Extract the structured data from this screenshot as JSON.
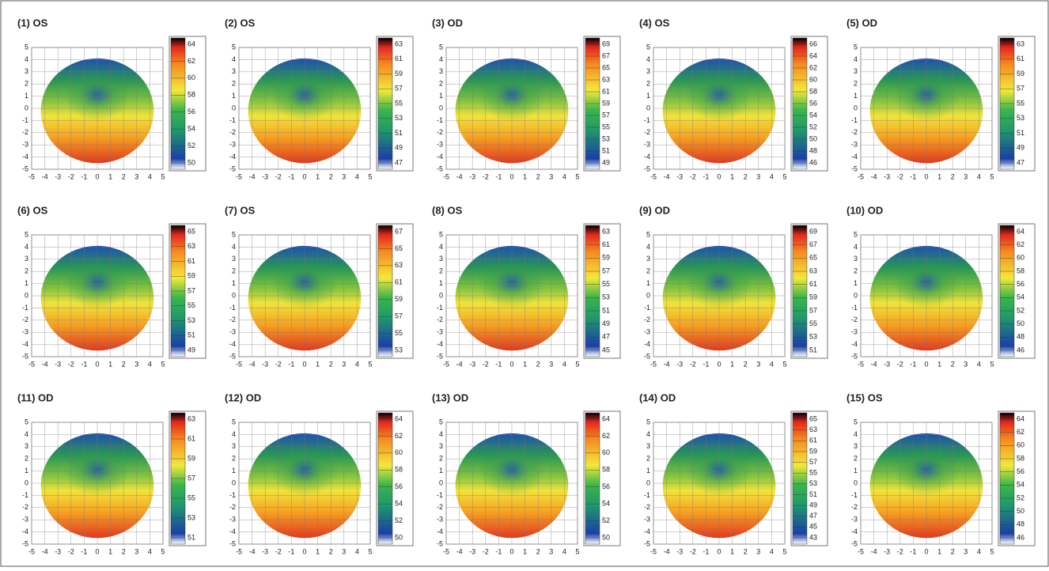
{
  "chart_data": [
    {
      "type": "topography",
      "title": "(1) OS",
      "xlim": [
        -5,
        5
      ],
      "ylim": [
        -5,
        5
      ],
      "xticks": [
        -5,
        -4,
        -3,
        -2,
        -1,
        0,
        1,
        2,
        3,
        4,
        5
      ],
      "yticks": [
        -5,
        -4,
        -3,
        -2,
        -1,
        0,
        1,
        2,
        3,
        4,
        5
      ],
      "colorbar_ticks": [
        64,
        62,
        60,
        58,
        56,
        54,
        52,
        50
      ],
      "grid": true
    },
    {
      "type": "topography",
      "title": "(2) OS",
      "xlim": [
        -5,
        5
      ],
      "ylim": [
        -5,
        5
      ],
      "xticks": [
        -5,
        -4,
        -3,
        -2,
        -1,
        0,
        1,
        2,
        3,
        4,
        5
      ],
      "yticks": [
        -5,
        -4,
        -3,
        -2,
        -1,
        0,
        1,
        2,
        3,
        4,
        5
      ],
      "colorbar_ticks": [
        63,
        61,
        59,
        57,
        55,
        53,
        51,
        49,
        47
      ],
      "grid": true
    },
    {
      "type": "topography",
      "title": "(3) OD",
      "xlim": [
        -5,
        5
      ],
      "ylim": [
        -5,
        5
      ],
      "xticks": [
        -5,
        -4,
        -3,
        -2,
        -1,
        0,
        1,
        2,
        3,
        4,
        5
      ],
      "yticks": [
        -5,
        -4,
        -3,
        -2,
        -1,
        0,
        1,
        2,
        3,
        4,
        5
      ],
      "colorbar_ticks": [
        69,
        67,
        65,
        63,
        61,
        59,
        57,
        55,
        53,
        51,
        49
      ],
      "grid": true
    },
    {
      "type": "topography",
      "title": "(4) OS",
      "xlim": [
        -5,
        5
      ],
      "ylim": [
        -5,
        5
      ],
      "xticks": [
        -5,
        -4,
        -3,
        -2,
        -1,
        0,
        1,
        2,
        3,
        4,
        5
      ],
      "yticks": [
        -5,
        -4,
        -3,
        -2,
        -1,
        0,
        1,
        2,
        3,
        4,
        5
      ],
      "colorbar_ticks": [
        66,
        64,
        62,
        60,
        58,
        56,
        54,
        52,
        50,
        48,
        46
      ],
      "grid": true
    },
    {
      "type": "topography",
      "title": "(5) OD",
      "xlim": [
        -5,
        5
      ],
      "ylim": [
        -5,
        5
      ],
      "xticks": [
        -5,
        -4,
        -3,
        -2,
        -1,
        0,
        1,
        2,
        3,
        4,
        5
      ],
      "yticks": [
        -5,
        -4,
        -3,
        -2,
        -1,
        0,
        1,
        2,
        3,
        4,
        5
      ],
      "colorbar_ticks": [
        63,
        61,
        59,
        57,
        55,
        53,
        51,
        49,
        47
      ],
      "grid": true
    },
    {
      "type": "topography",
      "title": "(6) OS",
      "xlim": [
        -5,
        5
      ],
      "ylim": [
        -5,
        5
      ],
      "xticks": [
        -5,
        -4,
        -3,
        -2,
        -1,
        0,
        1,
        2,
        3,
        4,
        5
      ],
      "yticks": [
        -5,
        -4,
        -3,
        -2,
        -1,
        0,
        1,
        2,
        3,
        4,
        5
      ],
      "colorbar_ticks": [
        65,
        63,
        61,
        59,
        57,
        55,
        53,
        51,
        49
      ],
      "grid": true
    },
    {
      "type": "topography",
      "title": "(7) OS",
      "xlim": [
        -5,
        5
      ],
      "ylim": [
        -5,
        5
      ],
      "xticks": [
        -5,
        -4,
        -3,
        -2,
        -1,
        0,
        1,
        2,
        3,
        4,
        5
      ],
      "yticks": [
        -5,
        -4,
        -3,
        -2,
        -1,
        0,
        1,
        2,
        3,
        4,
        5
      ],
      "colorbar_ticks": [
        67,
        65,
        63,
        61,
        59,
        57,
        55,
        53
      ],
      "grid": true
    },
    {
      "type": "topography",
      "title": "(8) OS",
      "xlim": [
        -5,
        5
      ],
      "ylim": [
        -5,
        5
      ],
      "xticks": [
        -5,
        -4,
        -3,
        -2,
        -1,
        0,
        1,
        2,
        3,
        4,
        5
      ],
      "yticks": [
        -5,
        -4,
        -3,
        -2,
        -1,
        0,
        1,
        2,
        3,
        4,
        5
      ],
      "colorbar_ticks": [
        63,
        61,
        59,
        57,
        55,
        53,
        51,
        49,
        47,
        45
      ],
      "grid": true
    },
    {
      "type": "topography",
      "title": "(9) OD",
      "xlim": [
        -5,
        5
      ],
      "ylim": [
        -5,
        5
      ],
      "xticks": [
        -5,
        -4,
        -3,
        -2,
        -1,
        0,
        1,
        2,
        3,
        4,
        5
      ],
      "yticks": [
        -5,
        -4,
        -3,
        -2,
        -1,
        0,
        1,
        2,
        3,
        4,
        5
      ],
      "colorbar_ticks": [
        69,
        67,
        65,
        63,
        61,
        59,
        57,
        55,
        53,
        51
      ],
      "grid": true
    },
    {
      "type": "topography",
      "title": "(10) OD",
      "xlim": [
        -5,
        5
      ],
      "ylim": [
        -5,
        5
      ],
      "xticks": [
        -5,
        -4,
        -3,
        -2,
        -1,
        0,
        1,
        2,
        3,
        4,
        5
      ],
      "yticks": [
        -5,
        -4,
        -3,
        -2,
        -1,
        0,
        1,
        2,
        3,
        4,
        5
      ],
      "colorbar_ticks": [
        64,
        62,
        60,
        58,
        56,
        54,
        52,
        50,
        48,
        46
      ],
      "grid": true
    },
    {
      "type": "topography",
      "title": "(11) OD",
      "xlim": [
        -5,
        5
      ],
      "ylim": [
        -5,
        5
      ],
      "xticks": [
        -5,
        -4,
        -3,
        -2,
        -1,
        0,
        1,
        2,
        3,
        4,
        5
      ],
      "yticks": [
        -5,
        -4,
        -3,
        -2,
        -1,
        0,
        1,
        2,
        3,
        4,
        5
      ],
      "colorbar_ticks": [
        63,
        61,
        59,
        57,
        55,
        53,
        51
      ],
      "grid": true
    },
    {
      "type": "topography",
      "title": "(12) OD",
      "xlim": [
        -5,
        5
      ],
      "ylim": [
        -5,
        5
      ],
      "xticks": [
        -5,
        -4,
        -3,
        -2,
        -1,
        0,
        1,
        2,
        3,
        4,
        5
      ],
      "yticks": [
        -5,
        -4,
        -3,
        -2,
        -1,
        0,
        1,
        2,
        3,
        4,
        5
      ],
      "colorbar_ticks": [
        64,
        62,
        60,
        58,
        56,
        54,
        52,
        50
      ],
      "grid": true
    },
    {
      "type": "topography",
      "title": "(13) OD",
      "xlim": [
        -5,
        5
      ],
      "ylim": [
        -5,
        5
      ],
      "xticks": [
        -5,
        -4,
        -3,
        -2,
        -1,
        0,
        1,
        2,
        3,
        4,
        5
      ],
      "yticks": [
        -5,
        -4,
        -3,
        -2,
        -1,
        0,
        1,
        2,
        3,
        4,
        5
      ],
      "colorbar_ticks": [
        64,
        62,
        60,
        58,
        56,
        54,
        52,
        50
      ],
      "grid": true
    },
    {
      "type": "topography",
      "title": "(14) OD",
      "xlim": [
        -5,
        5
      ],
      "ylim": [
        -5,
        5
      ],
      "xticks": [
        -5,
        -4,
        -3,
        -2,
        -1,
        0,
        1,
        2,
        3,
        4,
        5
      ],
      "yticks": [
        -5,
        -4,
        -3,
        -2,
        -1,
        0,
        1,
        2,
        3,
        4,
        5
      ],
      "colorbar_ticks": [
        65,
        63,
        61,
        59,
        57,
        55,
        53,
        51,
        49,
        47,
        45,
        43
      ],
      "grid": true
    },
    {
      "type": "topography",
      "title": "(15) OS",
      "xlim": [
        -5,
        5
      ],
      "ylim": [
        -5,
        5
      ],
      "xticks": [
        -5,
        -4,
        -3,
        -2,
        -1,
        0,
        1,
        2,
        3,
        4,
        5
      ],
      "yticks": [
        -5,
        -4,
        -3,
        -2,
        -1,
        0,
        1,
        2,
        3,
        4,
        5
      ],
      "colorbar_ticks": [
        64,
        62,
        60,
        58,
        56,
        54,
        52,
        50,
        48,
        46
      ],
      "grid": true
    }
  ]
}
